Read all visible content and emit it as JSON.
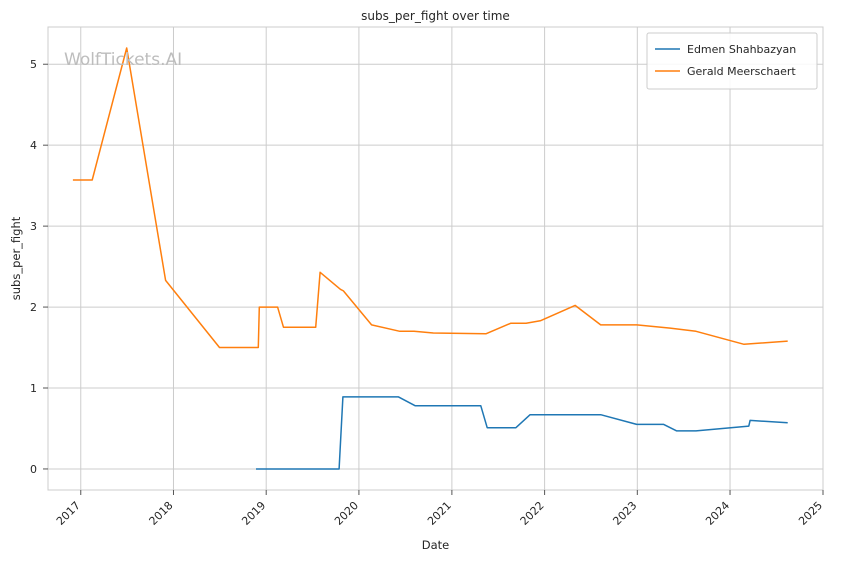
{
  "chart_data": {
    "type": "line",
    "title": "subs_per_fight over time",
    "xlabel": "Date",
    "ylabel": "subs_per_fight",
    "watermark": "WolfTickets.AI",
    "xlim": [
      "2016-08-25",
      "2025-01-01"
    ],
    "ylim": [
      -0.26,
      5.46
    ],
    "x_ticks": [
      {
        "date": "2017-01-01",
        "label": "2017"
      },
      {
        "date": "2018-01-01",
        "label": "2018"
      },
      {
        "date": "2019-01-01",
        "label": "2019"
      },
      {
        "date": "2020-01-01",
        "label": "2020"
      },
      {
        "date": "2021-01-01",
        "label": "2021"
      },
      {
        "date": "2022-01-01",
        "label": "2022"
      },
      {
        "date": "2023-01-01",
        "label": "2023"
      },
      {
        "date": "2024-01-01",
        "label": "2024"
      },
      {
        "date": "2025-01-01",
        "label": "2025"
      }
    ],
    "y_ticks": [
      0,
      1,
      2,
      3,
      4,
      5
    ],
    "grid": true,
    "legend_position": "top-right",
    "series": [
      {
        "name": "Edmen Shahbazyan",
        "color": "#1f77b4",
        "points": [
          [
            "2018-11-22",
            0.0
          ],
          [
            "2019-10-15",
            0.0
          ],
          [
            "2019-10-30",
            0.89
          ],
          [
            "2020-06-05",
            0.89
          ],
          [
            "2020-08-10",
            0.78
          ],
          [
            "2021-04-25",
            0.78
          ],
          [
            "2021-05-20",
            0.51
          ],
          [
            "2021-09-10",
            0.51
          ],
          [
            "2021-11-05",
            0.67
          ],
          [
            "2022-08-10",
            0.67
          ],
          [
            "2022-12-30",
            0.55
          ],
          [
            "2023-04-15",
            0.55
          ],
          [
            "2023-06-05",
            0.47
          ],
          [
            "2023-08-20",
            0.47
          ],
          [
            "2024-03-15",
            0.53
          ],
          [
            "2024-03-20",
            0.6
          ],
          [
            "2024-08-15",
            0.57
          ]
        ]
      },
      {
        "name": "Gerald Meerschaert",
        "color": "#ff7f0e",
        "points": [
          [
            "2016-12-01",
            3.57
          ],
          [
            "2017-02-15",
            3.57
          ],
          [
            "2017-07-01",
            5.2
          ],
          [
            "2017-12-01",
            2.33
          ],
          [
            "2018-07-01",
            1.5
          ],
          [
            "2018-12-01",
            1.5
          ],
          [
            "2018-12-05",
            2.0
          ],
          [
            "2019-02-15",
            2.0
          ],
          [
            "2019-03-10",
            1.75
          ],
          [
            "2019-07-15",
            1.75
          ],
          [
            "2019-08-01",
            2.43
          ],
          [
            "2019-10-20",
            2.22
          ],
          [
            "2019-11-01",
            2.2
          ],
          [
            "2020-02-20",
            1.78
          ],
          [
            "2020-06-10",
            1.7
          ],
          [
            "2020-08-05",
            1.7
          ],
          [
            "2020-10-20",
            1.68
          ],
          [
            "2021-05-15",
            1.67
          ],
          [
            "2021-08-20",
            1.8
          ],
          [
            "2021-10-20",
            1.8
          ],
          [
            "2021-12-15",
            1.83
          ],
          [
            "2022-05-01",
            2.02
          ],
          [
            "2022-08-10",
            1.78
          ],
          [
            "2022-12-30",
            1.78
          ],
          [
            "2023-05-10",
            1.74
          ],
          [
            "2023-08-20",
            1.7
          ],
          [
            "2024-02-25",
            1.54
          ],
          [
            "2024-08-15",
            1.58
          ]
        ]
      }
    ]
  }
}
